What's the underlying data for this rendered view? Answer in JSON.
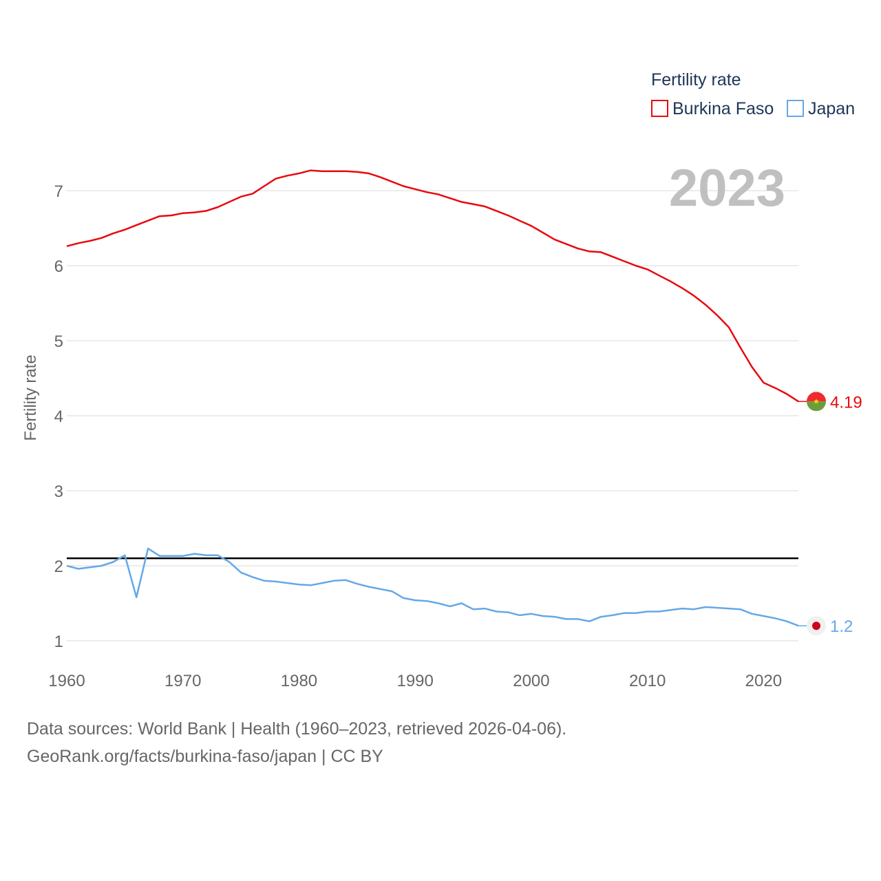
{
  "chart_data": {
    "type": "line",
    "title": "Fertility rate",
    "ylabel": "Fertility rate",
    "xlabel": "",
    "ylim": [
      0.7,
      7.5
    ],
    "xlim": [
      1960,
      2023
    ],
    "y_ticks": [
      1,
      2,
      3,
      4,
      5,
      6,
      7
    ],
    "x_ticks": [
      1960,
      1970,
      1980,
      1990,
      2000,
      2010,
      2020
    ],
    "highlight_year": "2023",
    "reference_line": 2.1,
    "colors": {
      "Burkina Faso": "#e8090f",
      "Japan": "#64a8e6",
      "reference": "#000000",
      "grid": "#e6e6e6"
    },
    "x": [
      1960,
      1961,
      1962,
      1963,
      1964,
      1965,
      1966,
      1967,
      1968,
      1969,
      1970,
      1971,
      1972,
      1973,
      1974,
      1975,
      1976,
      1977,
      1978,
      1979,
      1980,
      1981,
      1982,
      1983,
      1984,
      1985,
      1986,
      1987,
      1988,
      1989,
      1990,
      1991,
      1992,
      1993,
      1994,
      1995,
      1996,
      1997,
      1998,
      1999,
      2000,
      2001,
      2002,
      2003,
      2004,
      2005,
      2006,
      2007,
      2008,
      2009,
      2010,
      2011,
      2012,
      2013,
      2014,
      2015,
      2016,
      2017,
      2018,
      2019,
      2020,
      2021,
      2022,
      2023
    ],
    "series": [
      {
        "name": "Burkina Faso",
        "end_label": "4.19",
        "values": [
          6.26,
          6.3,
          6.33,
          6.37,
          6.43,
          6.48,
          6.54,
          6.6,
          6.66,
          6.67,
          6.7,
          6.71,
          6.73,
          6.78,
          6.85,
          6.92,
          6.96,
          7.06,
          7.16,
          7.2,
          7.23,
          7.27,
          7.26,
          7.26,
          7.26,
          7.25,
          7.23,
          7.18,
          7.12,
          7.06,
          7.02,
          6.98,
          6.95,
          6.9,
          6.85,
          6.82,
          6.79,
          6.73,
          6.67,
          6.6,
          6.53,
          6.44,
          6.35,
          6.29,
          6.23,
          6.19,
          6.18,
          6.12,
          6.06,
          6.0,
          5.95,
          5.87,
          5.79,
          5.7,
          5.6,
          5.48,
          5.34,
          5.18,
          4.91,
          4.65,
          4.44,
          4.37,
          4.29,
          4.19
        ]
      },
      {
        "name": "Japan",
        "end_label": "1.2",
        "values": [
          2.0,
          1.96,
          1.98,
          2.0,
          2.05,
          2.14,
          1.58,
          2.23,
          2.13,
          2.13,
          2.13,
          2.16,
          2.14,
          2.14,
          2.05,
          1.91,
          1.85,
          1.8,
          1.79,
          1.77,
          1.75,
          1.74,
          1.77,
          1.8,
          1.81,
          1.76,
          1.72,
          1.69,
          1.66,
          1.57,
          1.54,
          1.53,
          1.5,
          1.46,
          1.5,
          1.42,
          1.43,
          1.39,
          1.38,
          1.34,
          1.36,
          1.33,
          1.32,
          1.29,
          1.29,
          1.26,
          1.32,
          1.34,
          1.37,
          1.37,
          1.39,
          1.39,
          1.41,
          1.43,
          1.42,
          1.45,
          1.44,
          1.43,
          1.42,
          1.36,
          1.33,
          1.3,
          1.26,
          1.2
        ]
      }
    ]
  },
  "footer": {
    "line1": "Data sources: World Bank | Health (1960–2023, retrieved 2026-04-06).",
    "line2": "GeoRank.org/facts/burkina-faso/japan | CC BY"
  },
  "icons": {
    "burkina_faso": "burkina-faso-flag-icon",
    "japan": "japan-flag-icon"
  },
  "flag_colors": {
    "burkina_faso_top": "#ef2b2d",
    "burkina_faso_bottom": "#6b9e3a",
    "burkina_faso_star": "#fcd116",
    "japan_bg": "#f0f0f0",
    "japan_disc": "#d0021b"
  }
}
